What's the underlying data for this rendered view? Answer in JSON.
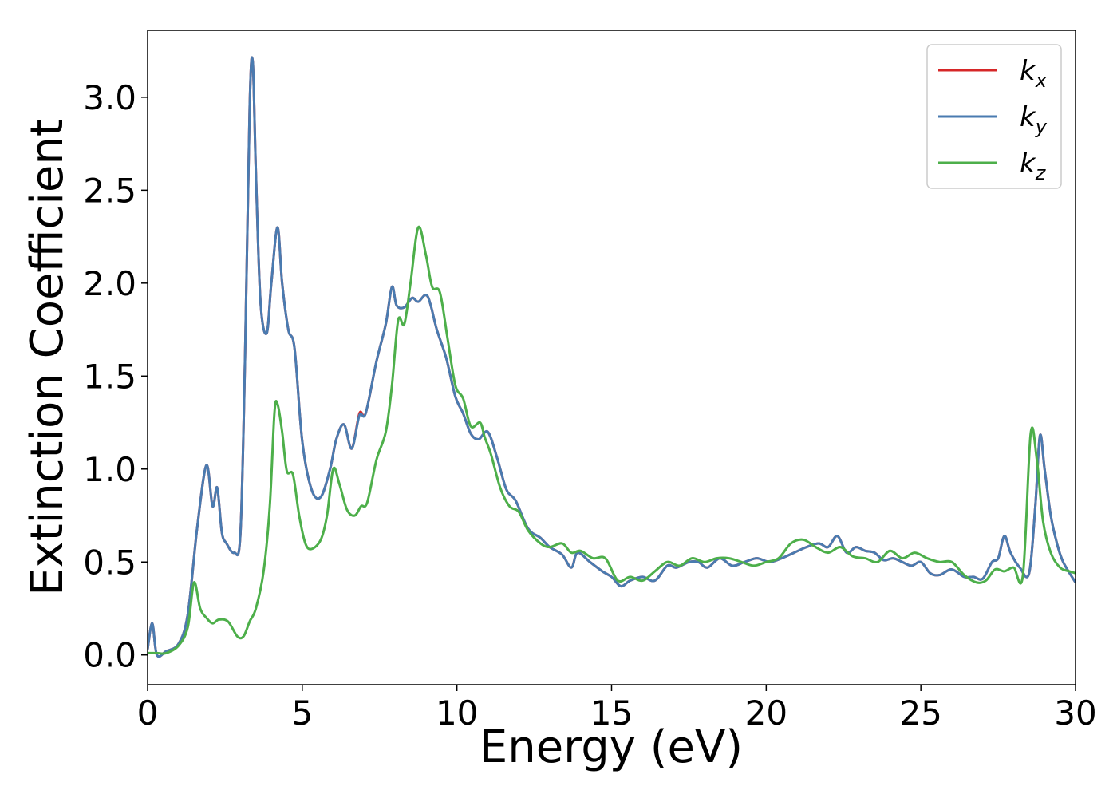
{
  "chart_data": {
    "type": "line",
    "title": "",
    "xlabel": "Energy (eV)",
    "ylabel": "Extinction Coefficient",
    "xlim": [
      0,
      30
    ],
    "ylim": [
      -0.16,
      3.36
    ],
    "xticks": [
      0,
      5,
      10,
      15,
      20,
      25,
      30
    ],
    "yticks": [
      0.0,
      0.5,
      1.0,
      1.5,
      2.0,
      2.5,
      3.0
    ],
    "xtick_labels": [
      "0",
      "5",
      "10",
      "15",
      "20",
      "25",
      "30"
    ],
    "ytick_labels": [
      "0.0",
      "0.5",
      "1.0",
      "1.5",
      "2.0",
      "2.5",
      "3.0"
    ],
    "grid": false,
    "legend_position": "top-right",
    "series": [
      {
        "name": "k",
        "subscript": "x",
        "color": "#d62728",
        "x": [
          0.0,
          0.15,
          0.3,
          0.6,
          1.0,
          1.3,
          1.6,
          1.9,
          2.1,
          2.25,
          2.4,
          2.55,
          2.8,
          3.0,
          3.15,
          3.3,
          3.4,
          3.5,
          3.65,
          3.85,
          4.0,
          4.2,
          4.35,
          4.55,
          4.75,
          5.0,
          5.3,
          5.6,
          5.9,
          6.1,
          6.35,
          6.6,
          6.85,
          7.05,
          7.4,
          7.7,
          7.9,
          8.05,
          8.3,
          8.55,
          8.75,
          9.05,
          9.35,
          9.65,
          9.95,
          10.2,
          10.45,
          10.7,
          11.0,
          11.3,
          11.6,
          11.9,
          12.3,
          12.7,
          13.0,
          13.4,
          13.7,
          13.9,
          14.3,
          14.7,
          15.0,
          15.3,
          15.6,
          16.0,
          16.4,
          16.8,
          17.1,
          17.5,
          17.8,
          18.1,
          18.5,
          18.9,
          19.3,
          19.7,
          20.1,
          20.5,
          20.9,
          21.3,
          21.7,
          22.0,
          22.3,
          22.6,
          22.9,
          23.2,
          23.5,
          23.8,
          24.1,
          24.4,
          24.7,
          25.0,
          25.3,
          25.6,
          26.0,
          26.4,
          26.7,
          27.0,
          27.3,
          27.5,
          27.7,
          27.9,
          28.2,
          28.5,
          28.7,
          28.85,
          29.0,
          29.2,
          29.4,
          29.6,
          30.0
        ],
        "y": [
          0.03,
          0.17,
          0.0,
          0.02,
          0.06,
          0.22,
          0.68,
          1.02,
          0.8,
          0.9,
          0.66,
          0.6,
          0.55,
          0.65,
          1.6,
          2.95,
          3.19,
          2.6,
          1.9,
          1.73,
          2.0,
          2.3,
          2.0,
          1.75,
          1.65,
          1.15,
          0.89,
          0.85,
          1.0,
          1.16,
          1.24,
          1.11,
          1.3,
          1.3,
          1.58,
          1.78,
          1.98,
          1.88,
          1.87,
          1.92,
          1.9,
          1.93,
          1.75,
          1.6,
          1.39,
          1.3,
          1.19,
          1.16,
          1.2,
          1.06,
          0.89,
          0.83,
          0.68,
          0.63,
          0.58,
          0.54,
          0.47,
          0.55,
          0.5,
          0.45,
          0.42,
          0.37,
          0.4,
          0.42,
          0.4,
          0.48,
          0.47,
          0.5,
          0.5,
          0.47,
          0.52,
          0.48,
          0.5,
          0.52,
          0.5,
          0.52,
          0.55,
          0.58,
          0.6,
          0.58,
          0.64,
          0.55,
          0.58,
          0.56,
          0.55,
          0.51,
          0.52,
          0.5,
          0.48,
          0.5,
          0.44,
          0.43,
          0.46,
          0.42,
          0.42,
          0.41,
          0.5,
          0.52,
          0.64,
          0.55,
          0.47,
          0.44,
          0.8,
          1.18,
          1.0,
          0.75,
          0.6,
          0.5,
          0.39
        ]
      },
      {
        "name": "k",
        "subscript": "y",
        "color": "#4a7bb0",
        "x": [
          0.0,
          0.15,
          0.3,
          0.6,
          1.0,
          1.3,
          1.6,
          1.9,
          2.1,
          2.25,
          2.4,
          2.55,
          2.8,
          3.0,
          3.15,
          3.3,
          3.4,
          3.5,
          3.65,
          3.85,
          4.0,
          4.2,
          4.35,
          4.55,
          4.75,
          5.0,
          5.3,
          5.6,
          5.9,
          6.1,
          6.35,
          6.6,
          6.85,
          7.05,
          7.4,
          7.7,
          7.9,
          8.05,
          8.3,
          8.55,
          8.75,
          9.05,
          9.35,
          9.65,
          9.95,
          10.2,
          10.45,
          10.7,
          11.0,
          11.3,
          11.6,
          11.9,
          12.3,
          12.7,
          13.0,
          13.4,
          13.7,
          13.9,
          14.3,
          14.7,
          15.0,
          15.3,
          15.6,
          16.0,
          16.4,
          16.8,
          17.1,
          17.5,
          17.8,
          18.1,
          18.5,
          18.9,
          19.3,
          19.7,
          20.1,
          20.5,
          20.9,
          21.3,
          21.7,
          22.0,
          22.3,
          22.6,
          22.9,
          23.2,
          23.5,
          23.8,
          24.1,
          24.4,
          24.7,
          25.0,
          25.3,
          25.6,
          26.0,
          26.4,
          26.7,
          27.0,
          27.3,
          27.5,
          27.7,
          27.9,
          28.2,
          28.5,
          28.7,
          28.85,
          29.0,
          29.2,
          29.4,
          29.6,
          30.0
        ],
        "y": [
          0.03,
          0.17,
          0.0,
          0.02,
          0.06,
          0.22,
          0.68,
          1.02,
          0.8,
          0.9,
          0.66,
          0.6,
          0.55,
          0.65,
          1.6,
          2.95,
          3.19,
          2.6,
          1.9,
          1.73,
          2.0,
          2.3,
          2.0,
          1.75,
          1.65,
          1.15,
          0.89,
          0.85,
          1.0,
          1.16,
          1.24,
          1.11,
          1.29,
          1.3,
          1.58,
          1.78,
          1.98,
          1.88,
          1.87,
          1.92,
          1.9,
          1.93,
          1.75,
          1.6,
          1.39,
          1.3,
          1.19,
          1.16,
          1.2,
          1.06,
          0.89,
          0.83,
          0.68,
          0.63,
          0.58,
          0.54,
          0.47,
          0.55,
          0.5,
          0.45,
          0.42,
          0.37,
          0.4,
          0.42,
          0.4,
          0.48,
          0.47,
          0.5,
          0.5,
          0.47,
          0.52,
          0.48,
          0.5,
          0.52,
          0.5,
          0.52,
          0.55,
          0.58,
          0.6,
          0.58,
          0.64,
          0.55,
          0.58,
          0.56,
          0.55,
          0.51,
          0.52,
          0.5,
          0.48,
          0.5,
          0.44,
          0.43,
          0.46,
          0.42,
          0.42,
          0.41,
          0.5,
          0.52,
          0.64,
          0.55,
          0.47,
          0.44,
          0.8,
          1.18,
          1.0,
          0.75,
          0.6,
          0.5,
          0.39
        ]
      },
      {
        "name": "k",
        "subscript": "z",
        "color": "#4daf4a",
        "x": [
          0.0,
          0.3,
          0.6,
          1.0,
          1.3,
          1.5,
          1.7,
          1.9,
          2.1,
          2.3,
          2.6,
          2.9,
          3.1,
          3.3,
          3.5,
          3.75,
          3.95,
          4.1,
          4.2,
          4.35,
          4.5,
          4.7,
          4.9,
          5.1,
          5.3,
          5.6,
          5.8,
          6.0,
          6.2,
          6.45,
          6.7,
          6.9,
          7.1,
          7.4,
          7.7,
          7.9,
          8.1,
          8.3,
          8.5,
          8.75,
          9.0,
          9.2,
          9.45,
          9.7,
          9.95,
          10.2,
          10.45,
          10.75,
          10.9,
          11.1,
          11.4,
          11.7,
          12.0,
          12.3,
          12.7,
          13.0,
          13.4,
          13.7,
          14.0,
          14.4,
          14.8,
          15.2,
          15.6,
          16.0,
          16.4,
          16.8,
          17.2,
          17.6,
          18.0,
          18.4,
          18.8,
          19.2,
          19.6,
          20.0,
          20.4,
          20.8,
          21.2,
          21.6,
          22.0,
          22.4,
          22.8,
          23.2,
          23.6,
          24.0,
          24.4,
          24.8,
          25.2,
          25.6,
          26.0,
          26.4,
          26.8,
          27.1,
          27.4,
          27.7,
          28.0,
          28.3,
          28.55,
          28.75,
          28.95,
          29.2,
          29.5,
          29.8,
          30.0
        ],
        "y": [
          0.01,
          0.01,
          0.01,
          0.05,
          0.15,
          0.39,
          0.25,
          0.2,
          0.17,
          0.19,
          0.18,
          0.1,
          0.1,
          0.18,
          0.25,
          0.45,
          0.8,
          1.3,
          1.35,
          1.2,
          0.99,
          0.97,
          0.75,
          0.6,
          0.57,
          0.62,
          0.75,
          1.0,
          0.92,
          0.78,
          0.75,
          0.8,
          0.82,
          1.05,
          1.2,
          1.45,
          1.8,
          1.78,
          2.0,
          2.3,
          2.15,
          1.98,
          1.95,
          1.7,
          1.45,
          1.38,
          1.23,
          1.25,
          1.17,
          1.08,
          0.9,
          0.8,
          0.77,
          0.67,
          0.6,
          0.58,
          0.6,
          0.55,
          0.56,
          0.52,
          0.52,
          0.4,
          0.42,
          0.4,
          0.45,
          0.5,
          0.48,
          0.52,
          0.5,
          0.52,
          0.52,
          0.5,
          0.48,
          0.5,
          0.52,
          0.6,
          0.62,
          0.58,
          0.55,
          0.58,
          0.53,
          0.52,
          0.5,
          0.56,
          0.52,
          0.55,
          0.52,
          0.5,
          0.5,
          0.43,
          0.39,
          0.4,
          0.46,
          0.45,
          0.47,
          0.43,
          1.19,
          1.05,
          0.72,
          0.55,
          0.47,
          0.45,
          0.44
        ]
      }
    ]
  }
}
